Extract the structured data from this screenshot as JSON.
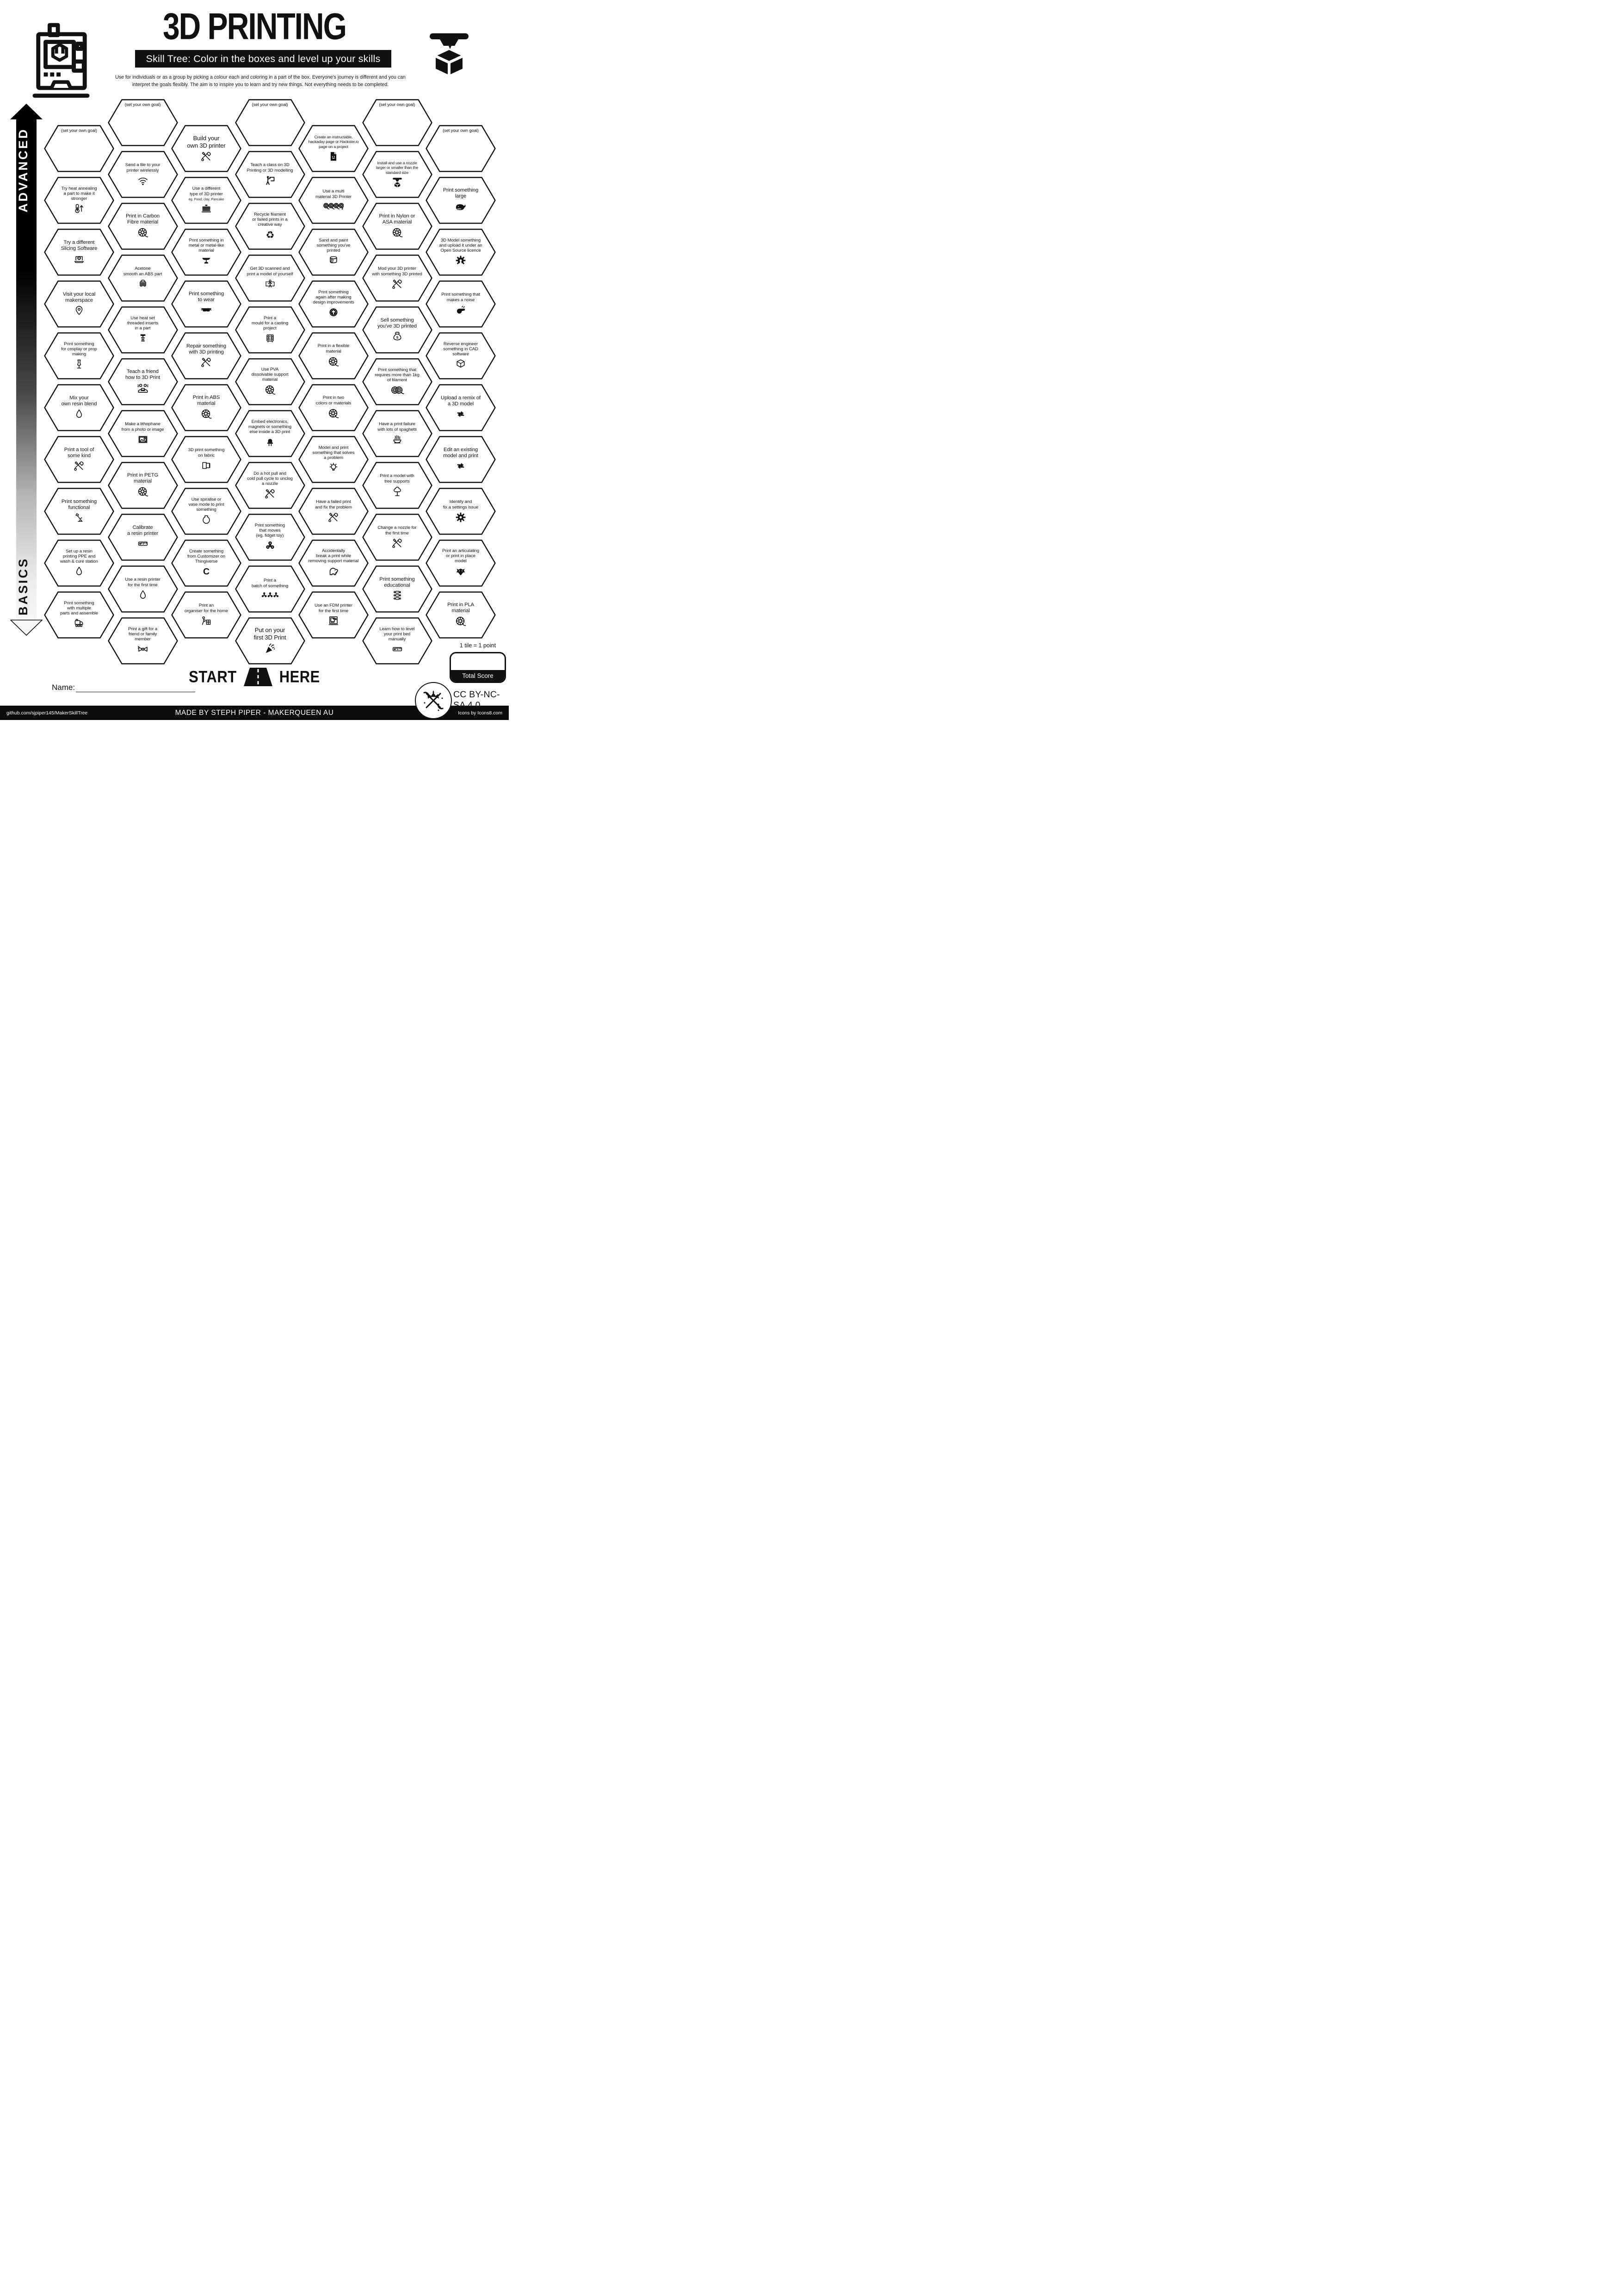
{
  "header": {
    "title": "3D PRINTING",
    "banner": "Skill Tree:  Color in the boxes and level up your skills",
    "description": "Use for individuals or as a group by picking a colour each and coloring in a part of the box.  Everyone's journey is different and you can\ninterpret the goals flexibly.  The aim is to inspire you to learn and try new things. Not everything needs to be completed."
  },
  "axis": {
    "top": "ADVANCED",
    "bottom": "BASICS"
  },
  "start": {
    "start_label": "START",
    "here_label": "HERE"
  },
  "name_label": "Name:",
  "score": {
    "tile_note": "1 tile = 1 point",
    "total_label": "Total Score"
  },
  "license_text": "CC BY-NC-SA 4.0",
  "footer": {
    "left": "github.com/sjpiper145/MakerSkillTree",
    "center": "MADE BY STEPH PIPER  -  MAKERQUEEN AU",
    "right": "Icons by Icons8.com"
  },
  "colors": {
    "ink": "#111111",
    "paper": "#ffffff"
  },
  "grid": {
    "columns": [
      {
        "tiles": [
          {
            "label": "(set your own goal)",
            "goal": true
          },
          {
            "label": "Try heat annealing\na part to make it\nstronger",
            "icon": "thermometer-up"
          },
          {
            "label": "Try a different\nSlicing Software",
            "icon": "laptop-gear"
          },
          {
            "label": "Visit your local\nmakerspace",
            "icon": "map-pin"
          },
          {
            "label": "Print something\nfor cosplay or prop\nmaking",
            "icon": "mannequin"
          },
          {
            "label": "Mix your\nown resin blend",
            "icon": "drop"
          },
          {
            "label": "Print a tool of\nsome kind",
            "icon": "tools"
          },
          {
            "label": "Print something\nfunctional",
            "icon": "desk-lamp"
          },
          {
            "label": "Set up a resin\nprinting PPE and\nwash & cure station",
            "icon": "drop"
          },
          {
            "label": "Print something\nwith multiple\nparts and assemble",
            "icon": "train"
          }
        ]
      },
      {
        "tiles": [
          {
            "label": "(set your own goal)",
            "goal": true
          },
          {
            "label": "Send a file to your\nprinter wirelessly",
            "icon": "wifi"
          },
          {
            "label": "Print in Carbon\nFibre material",
            "icon": "spool"
          },
          {
            "label": "Acetone\nsmooth an ABS part",
            "icon": "polisher"
          },
          {
            "label": "Use heat set\nthreaded inserts\nin a part",
            "icon": "threaded-insert"
          },
          {
            "label": "Teach a friend\nhow to 3D Print",
            "icon": "teach-friends"
          },
          {
            "label": "Make a lithophane\nfrom a photo or image",
            "icon": "photo"
          },
          {
            "label": "Print in PETG\nmaterial",
            "icon": "spool"
          },
          {
            "label": "Calibrate\na resin printer",
            "icon": "ruler"
          },
          {
            "label": "Use a resin printer\nfor the first time",
            "icon": "drop"
          },
          {
            "label": "Print a gift for a\nfriend or family\nmember",
            "icon": "bow"
          }
        ]
      },
      {
        "tiles": [
          {
            "label": "Build your\nown 3D printer",
            "icon": "tools",
            "big": true
          },
          {
            "label": "Use a different\ntype of 3D printer",
            "sub": "eg. Food, clay, Pancake",
            "icon": "pancake-printer"
          },
          {
            "label": "Print something in\nmetal or metal-like\nmaterial",
            "icon": "anvil"
          },
          {
            "label": "Print something\nto wear",
            "icon": "sunglasses"
          },
          {
            "label": "Repair something\nwith 3D printing",
            "icon": "tools"
          },
          {
            "label": "Print in ABS\nmaterial",
            "icon": "spool"
          },
          {
            "label": "3D print something\non fabric",
            "icon": "fabric"
          },
          {
            "label": "Use spiralise or\nvase mode to print\nsomething",
            "icon": "vase"
          },
          {
            "label": "Create something\nfrom Customizer on\nThingiverse",
            "icon": "customizer"
          },
          {
            "label": "Print an\norganiser for the home",
            "icon": "organiser"
          }
        ]
      },
      {
        "tiles": [
          {
            "label": "(set your own goal)",
            "goal": true
          },
          {
            "label": "Teach a class on 3D\nPrinting or 3D modelling",
            "icon": "presenter"
          },
          {
            "label": "Recycle filament\nor failed prints in a\ncreative way",
            "icon": "recycle"
          },
          {
            "label": "Get 3D scanned and\nprint a model of yourself",
            "icon": "body-scan"
          },
          {
            "label": "Print a\nmould for a casting\nproject",
            "icon": "mould"
          },
          {
            "label": "Use PVA\ndissolvable support\nmaterial",
            "icon": "spool"
          },
          {
            "label": "Embed electronics,\nmagnets or something\nelse inside a 3D print",
            "icon": "led"
          },
          {
            "label": "Do a hot pull and\ncold pull cycle to unclog\na nozzle",
            "icon": "tools"
          },
          {
            "label": "Print something\nthat moves\n(eg. fidget toy)",
            "icon": "fidget-spinner"
          },
          {
            "label": "Print a\nbatch of something",
            "icon": "batch"
          },
          {
            "label": "Put on your\nfirst 3D Print",
            "icon": "party-popper",
            "big": true
          }
        ]
      },
      {
        "tiles": [
          {
            "label": "Create an instructable,\nhackaday page or Hackster.io\npage on a project",
            "icon": "document-face"
          },
          {
            "label": "Use a multi\nmaterial 3D Printer",
            "icon": "four-spools"
          },
          {
            "label": "Sand and paint\nsomething you've\nprinted",
            "icon": "paint-bucket"
          },
          {
            "label": "Print something\nagain after making\ndesign improvements",
            "icon": "improve-circle"
          },
          {
            "label": "Print in a flexible\nmaterial",
            "icon": "spool"
          },
          {
            "label": "Print in two\ncolors or materials",
            "icon": "spool"
          },
          {
            "label": "Model and print\nsomething that solves\na problem",
            "icon": "lightbulb"
          },
          {
            "label": "Have a failed print\nand fix the problem",
            "icon": "tools"
          },
          {
            "label": "Accidentally\nbreak a print while\nremoving support material",
            "icon": "elephant"
          },
          {
            "label": "Use an FDM printer\nfor the first time",
            "icon": "fdm-printer"
          }
        ]
      },
      {
        "tiles": [
          {
            "label": "(set your own goal)",
            "goal": true
          },
          {
            "label": "Install and use a nozzle\nlarger or smaller than the\nstandard size",
            "icon": "nozzle-cube"
          },
          {
            "label": "Print in Nylon or\nASA material",
            "icon": "spool"
          },
          {
            "label": "Mod your 3D printer\nwith something 3D printed",
            "icon": "tools"
          },
          {
            "label": "Sell something\nyou've 3D printed",
            "icon": "money-bag"
          },
          {
            "label": "Print something that\nrequires more than 1kg\nof filament",
            "icon": "two-spools"
          },
          {
            "label": "Have a print failure\nwith lots of spaghetti",
            "icon": "noodle-bowl"
          },
          {
            "label": "Print a model with\ntree supports",
            "icon": "tree"
          },
          {
            "label": "Change a nozzle for\nthe first time",
            "icon": "tools"
          },
          {
            "label": "Print something\neducational",
            "icon": "spine"
          },
          {
            "label": "Learn how to level\nyour print bed\nmanually",
            "icon": "ruler"
          }
        ]
      },
      {
        "tiles": [
          {
            "label": "(set your own goal)",
            "goal": true
          },
          {
            "label": "Print something\nlarge",
            "icon": "whale"
          },
          {
            "label": "3D Model something\nand upload it under an\nOpen Source licence",
            "icon": "open-source-gear"
          },
          {
            "label": "Print something that\nmakes a noise",
            "icon": "whistle"
          },
          {
            "label": "Reverse engineer\nsomething in CAD\nsoftware",
            "icon": "cube"
          },
          {
            "label": "Upload a remix of\na 3D model",
            "icon": "remix-arrows"
          },
          {
            "label": "Edit an existing\nmodel and print",
            "icon": "remix-arrows"
          },
          {
            "label": "Identify and\nfix a settings issue",
            "icon": "gear"
          },
          {
            "label": "Print an articulating\nor print in place\nmodel",
            "icon": "dragon"
          },
          {
            "label": "Print in PLA\nmaterial",
            "icon": "spool"
          }
        ]
      }
    ]
  }
}
